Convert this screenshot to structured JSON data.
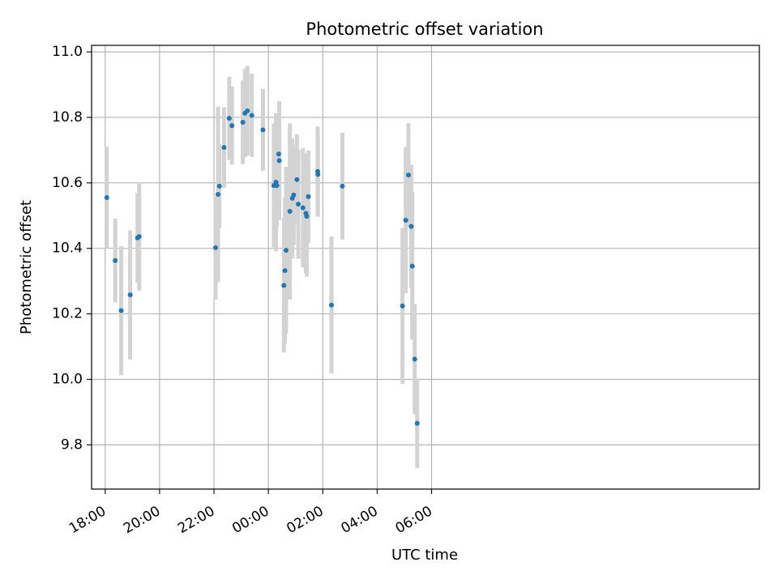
{
  "chart_data": {
    "type": "scatter",
    "title": "Photometric offset variation",
    "xlabel": "UTC time",
    "ylabel": "Photometric offset",
    "xlim": [
      -0.5,
      24.05
    ],
    "ylim": [
      9.665,
      11.02
    ],
    "grid": true,
    "x_ticks": [
      {
        "value": 0,
        "label": "18:00"
      },
      {
        "value": 2,
        "label": "20:00"
      },
      {
        "value": 4,
        "label": "22:00"
      },
      {
        "value": 6,
        "label": "00:00"
      },
      {
        "value": 8,
        "label": "02:00"
      },
      {
        "value": 10,
        "label": "04:00"
      },
      {
        "value": 12,
        "label": "06:00"
      }
    ],
    "y_ticks": [
      {
        "value": 9.8,
        "label": "9.8"
      },
      {
        "value": 10.0,
        "label": "10.0"
      },
      {
        "value": 10.2,
        "label": "10.2"
      },
      {
        "value": 10.4,
        "label": "10.4"
      },
      {
        "value": 10.6,
        "label": "10.6"
      },
      {
        "value": 10.8,
        "label": "10.8"
      },
      {
        "value": 11.0,
        "label": "11.0"
      }
    ],
    "marker_color": "#1f77b4",
    "errorbar_color": "#d3d3d3",
    "series": [
      {
        "name": "offset",
        "x": [
          0.06,
          0.37,
          0.59,
          0.92,
          1.19,
          1.25,
          4.06,
          4.15,
          4.2,
          4.37,
          4.56,
          4.66,
          5.06,
          5.14,
          5.23,
          5.39,
          5.8,
          6.2,
          6.28,
          6.31,
          6.38,
          6.4,
          6.57,
          6.61,
          6.65,
          6.79,
          6.88,
          6.93,
          7.05,
          7.1,
          7.27,
          7.38,
          7.41,
          7.47,
          7.81,
          7.82,
          8.32,
          8.72,
          10.93,
          11.05,
          11.15,
          11.25,
          11.29,
          11.38,
          11.47
        ],
        "y": [
          10.555,
          10.363,
          10.21,
          10.258,
          10.432,
          10.436,
          10.402,
          10.565,
          10.59,
          10.708,
          10.797,
          10.775,
          10.785,
          10.813,
          10.82,
          10.806,
          10.762,
          10.592,
          10.602,
          10.592,
          10.688,
          10.668,
          10.287,
          10.332,
          10.394,
          10.513,
          10.553,
          10.563,
          10.61,
          10.535,
          10.524,
          10.507,
          10.498,
          10.558,
          10.635,
          10.626,
          10.227,
          10.59,
          10.224,
          10.486,
          10.624,
          10.467,
          10.346,
          10.062,
          9.866
        ],
        "err": [
          0.155,
          0.128,
          0.197,
          0.197,
          0.137,
          0.165,
          0.158,
          0.268,
          0.127,
          0.123,
          0.127,
          0.119,
          0.128,
          0.135,
          0.137,
          0.127,
          0.125,
          0.189,
          0.211,
          0.127,
          0.125,
          0.181,
          0.205,
          0.223,
          0.255,
          0.269,
          0.183,
          0.152,
          0.138,
          0.167,
          0.182,
          0.183,
          0.184,
          0.141,
          0.137,
          0.129,
          0.209,
          0.163,
          0.238,
          0.223,
          0.158,
          0.188,
          0.225,
          0.168,
          0.137
        ]
      }
    ]
  }
}
